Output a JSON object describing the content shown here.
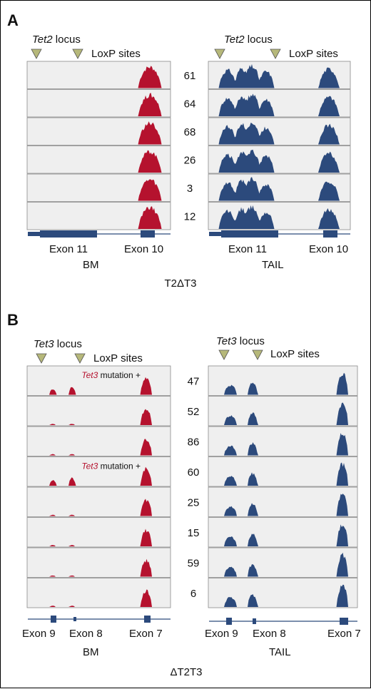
{
  "colors": {
    "bm_track": "#b5122e",
    "tail_track": "#2c4a7c",
    "track_bg": "#efefef",
    "track_border": "#8a8a8a",
    "loxp_triangle": "#b6b87a",
    "gene_model": "#2c4a7c",
    "mutation_label": "#b5122e"
  },
  "panels": [
    {
      "letter": "A",
      "locus_gene": "Tet2",
      "locus_word": " locus",
      "loxp_label": "LoxP sites",
      "bm_label": "BM",
      "tail_label": "TAIL",
      "genotype_label": "T2ΔT3",
      "bm_exons": [
        "Exon 11",
        "Exon 10"
      ],
      "tail_exons": [
        "Exon 11",
        "Exon 10"
      ],
      "samples": [
        "61",
        "64",
        "68",
        "26",
        "3",
        "12"
      ],
      "bm_mutation_rows": []
    },
    {
      "letter": "B",
      "locus_gene": "Tet3",
      "locus_word": " locus",
      "loxp_label": "LoxP sites",
      "bm_label": "BM",
      "tail_label": "TAIL",
      "genotype_label": "ΔT2T3",
      "bm_exons": [
        "Exon 9",
        "Exon 8",
        "Exon 7"
      ],
      "tail_exons": [
        "Exon 9",
        "Exon 8",
        "Exon 7"
      ],
      "samples": [
        "47",
        "52",
        "86",
        "60",
        "25",
        "15",
        "59",
        "6"
      ],
      "bm_mutation_rows": [
        0,
        3
      ],
      "mutation_gene": "Tet3",
      "mutation_text": " mutation +"
    }
  ]
}
